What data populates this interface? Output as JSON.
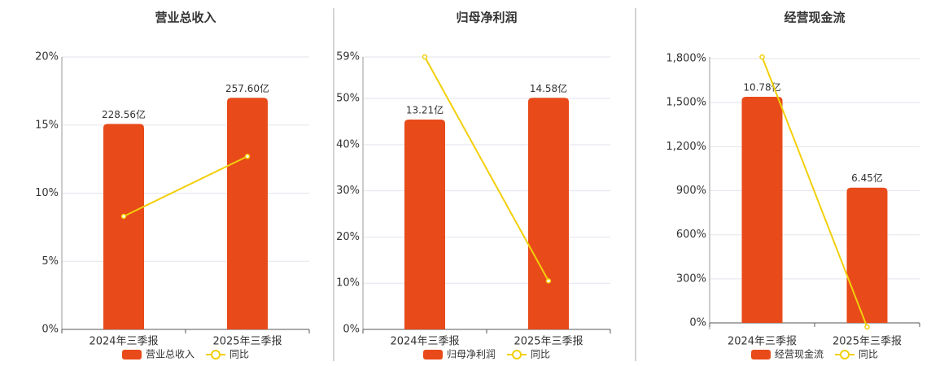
{
  "chart_data": [
    {
      "type": "combo",
      "title": "营业总收入",
      "categories": [
        "2024年三季报",
        "2025年三季报"
      ],
      "series": [
        {
          "name": "营业总收入",
          "color": "#e84a1a",
          "kind": "bar",
          "values": [
            228.56,
            257.6
          ],
          "value_labels": [
            "228.56亿",
            "257.60亿"
          ]
        },
        {
          "name": "同比",
          "color": "#f2cf0a",
          "kind": "line",
          "values": [
            8.3,
            12.7
          ]
        }
      ],
      "ylim": [
        0,
        20
      ],
      "yticks": [
        {
          "value": 0,
          "label": "0%"
        },
        {
          "value": 5,
          "label": "5%"
        },
        {
          "value": 10,
          "label": "10%"
        },
        {
          "value": 15,
          "label": "15%"
        },
        {
          "value": 20,
          "label": "20%"
        }
      ],
      "grid": true
    },
    {
      "type": "combo",
      "title": "归母净利润",
      "categories": [
        "2024年三季报",
        "2025年三季报"
      ],
      "series": [
        {
          "name": "归母净利润",
          "color": "#e84a1a",
          "kind": "bar",
          "values": [
            13.21,
            14.58
          ],
          "value_labels": [
            "13.21亿",
            "14.58亿"
          ]
        },
        {
          "name": "同比",
          "color": "#f2cf0a",
          "kind": "line",
          "values": [
            59,
            10.5
          ]
        }
      ],
      "ylim": [
        0,
        59
      ],
      "yticks": [
        {
          "value": 0,
          "label": "0%"
        },
        {
          "value": 10,
          "label": "10%"
        },
        {
          "value": 20,
          "label": "20%"
        },
        {
          "value": 30,
          "label": "30%"
        },
        {
          "value": 40,
          "label": "40%"
        },
        {
          "value": 50,
          "label": "50%"
        },
        {
          "value": 59,
          "label": "59%"
        }
      ],
      "grid": true
    },
    {
      "type": "combo",
      "title": "经营现金流",
      "categories": [
        "2024年三季报",
        "2025年三季报"
      ],
      "series": [
        {
          "name": "经营现金流",
          "color": "#e84a1a",
          "kind": "bar",
          "values": [
            10.78,
            6.45
          ],
          "value_labels": [
            "10.78亿",
            "6.45亿"
          ]
        },
        {
          "name": "同比",
          "color": "#f2cf0a",
          "kind": "line",
          "values": [
            1811,
            -28
          ]
        }
      ],
      "ylim": [
        -44,
        1811
      ],
      "yticks": [
        {
          "value": 0,
          "label": "0%"
        },
        {
          "value": 300,
          "label": "300%"
        },
        {
          "value": 600,
          "label": "600%"
        },
        {
          "value": 900,
          "label": "900%"
        },
        {
          "value": 1200,
          "label": "1,200%"
        },
        {
          "value": 1500,
          "label": "1,500%"
        },
        {
          "value": 1800,
          "label": "1,800%"
        }
      ],
      "grid": true
    }
  ]
}
